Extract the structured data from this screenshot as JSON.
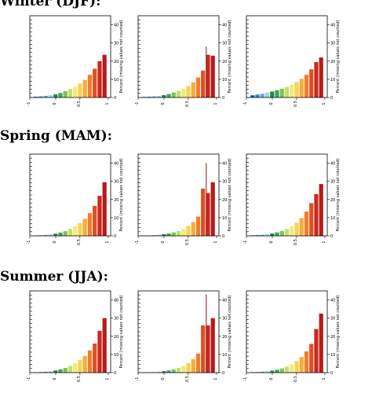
{
  "seasons": [
    {
      "title": "Winter (DJF):"
    },
    {
      "title": "Spring (MAM):"
    },
    {
      "title": "Summer (JJA):"
    }
  ],
  "chart_data": [
    {
      "type": "bar",
      "row": 0,
      "col": 0,
      "ylabel": "Percent (missing values not counted)",
      "ylim": [
        0,
        45
      ],
      "yticks": [
        0,
        10,
        20,
        30,
        40
      ],
      "xticks": [
        "-1",
        "0",
        "0.5",
        "1"
      ],
      "values": [
        0.4,
        0.6,
        0.9,
        1.3,
        1.8,
        2.5,
        3.5,
        4.6,
        6,
        7.7,
        9.7,
        12.5,
        15.8,
        20,
        23.5
      ],
      "marker": null
    },
    {
      "type": "bar",
      "row": 0,
      "col": 1,
      "ylabel": "Percent (missing values not counted)",
      "ylim": [
        0,
        45
      ],
      "yticks": [
        0,
        10,
        20,
        30,
        40
      ],
      "xticks": [
        "-1",
        "0",
        "0.5",
        "1"
      ],
      "values": [
        0.3,
        0.4,
        0.6,
        0.9,
        1.3,
        1.9,
        2.7,
        3.6,
        4.8,
        6.3,
        8.4,
        11,
        14.8,
        23.5,
        23
      ],
      "marker": 28
    },
    {
      "type": "bar",
      "row": 0,
      "col": 2,
      "ylabel": "Percent (missing values not counted)",
      "ylim": [
        0,
        45
      ],
      "yticks": [
        0,
        10,
        20,
        30,
        40
      ],
      "xticks": [
        "-1",
        "0",
        "0.5",
        "1"
      ],
      "values": [
        1.2,
        1.6,
        2.1,
        2.7,
        3.3,
        4,
        4.8,
        5.8,
        7,
        8.5,
        10.3,
        12.5,
        15.5,
        19.5,
        22
      ],
      "marker": null
    },
    {
      "type": "bar",
      "row": 1,
      "col": 0,
      "ylabel": "Percent (missing values not counted)",
      "ylim": [
        0,
        45
      ],
      "yticks": [
        0,
        10,
        20,
        30,
        40
      ],
      "xticks": [
        "-1",
        "0",
        "0.5",
        "1"
      ],
      "values": [
        0.2,
        0.3,
        0.5,
        0.8,
        1.2,
        1.8,
        2.6,
        3.8,
        5.2,
        7,
        9.4,
        12.5,
        16.5,
        22,
        29.5
      ],
      "marker": null
    },
    {
      "type": "bar",
      "row": 1,
      "col": 1,
      "ylabel": "Percent (missing values not counted)",
      "ylim": [
        0,
        45
      ],
      "yticks": [
        0,
        10,
        20,
        30,
        40
      ],
      "xticks": [
        "-1",
        "0",
        "0.5",
        "1"
      ],
      "values": [
        0.2,
        0.2,
        0.4,
        0.6,
        0.9,
        1.3,
        1.9,
        2.7,
        3.8,
        5.4,
        7.6,
        10.6,
        26,
        23.5,
        29.5
      ],
      "marker": 40
    },
    {
      "type": "bar",
      "row": 1,
      "col": 2,
      "ylabel": "Percent (missing values not counted)",
      "ylim": [
        0,
        45
      ],
      "yticks": [
        0,
        10,
        20,
        30,
        40
      ],
      "xticks": [
        "-1",
        "0",
        "0.5",
        "1"
      ],
      "values": [
        0.3,
        0.4,
        0.6,
        0.9,
        1.3,
        1.9,
        2.7,
        3.8,
        5.2,
        7.2,
        9.8,
        13.4,
        18,
        23,
        28.5
      ],
      "marker": null
    },
    {
      "type": "bar",
      "row": 2,
      "col": 0,
      "ylabel": "Percent (missing values not counted)",
      "ylim": [
        0,
        45
      ],
      "yticks": [
        0,
        10,
        20,
        30,
        40
      ],
      "xticks": [
        "-1",
        "0",
        "0.5",
        "1"
      ],
      "values": [
        0.2,
        0.3,
        0.5,
        0.8,
        1.2,
        1.8,
        2.6,
        3.7,
        5.1,
        6.9,
        9.2,
        12.2,
        16,
        23,
        30
      ],
      "marker": null
    },
    {
      "type": "bar",
      "row": 2,
      "col": 1,
      "ylabel": "Percent (missing values not counted)",
      "ylim": [
        0,
        45
      ],
      "yticks": [
        0,
        10,
        20,
        30,
        40
      ],
      "xticks": [
        "-1",
        "0",
        "0.5",
        "1"
      ],
      "values": [
        0.1,
        0.2,
        0.3,
        0.5,
        0.8,
        1.2,
        1.8,
        2.6,
        3.7,
        5.2,
        7.4,
        10.5,
        26,
        26,
        30
      ],
      "marker": 43
    },
    {
      "type": "bar",
      "row": 2,
      "col": 2,
      "ylabel": "Percent (missing values not counted)",
      "ylim": [
        0,
        45
      ],
      "yticks": [
        0,
        10,
        20,
        30,
        40
      ],
      "xticks": [
        "-1",
        "0",
        "0.5",
        "1"
      ],
      "values": [
        0.2,
        0.3,
        0.5,
        0.7,
        1.1,
        1.6,
        2.3,
        3.3,
        4.6,
        6.3,
        8.6,
        11.7,
        15.8,
        24,
        32.5
      ],
      "marker": null
    }
  ],
  "colors": {
    "bars": [
      "#1f5f95",
      "#3a80b8",
      "#6aa9d3",
      "#a7cde6",
      "#1f8a55",
      "#3ba55c",
      "#7dc353",
      "#c2e06a",
      "#f2ea7a",
      "#f8d253",
      "#f7ab3c",
      "#f07d2b",
      "#e04f20",
      "#c82a1f",
      "#b51b1b"
    ],
    "marker": "#8b1515",
    "axis": "#000000"
  }
}
